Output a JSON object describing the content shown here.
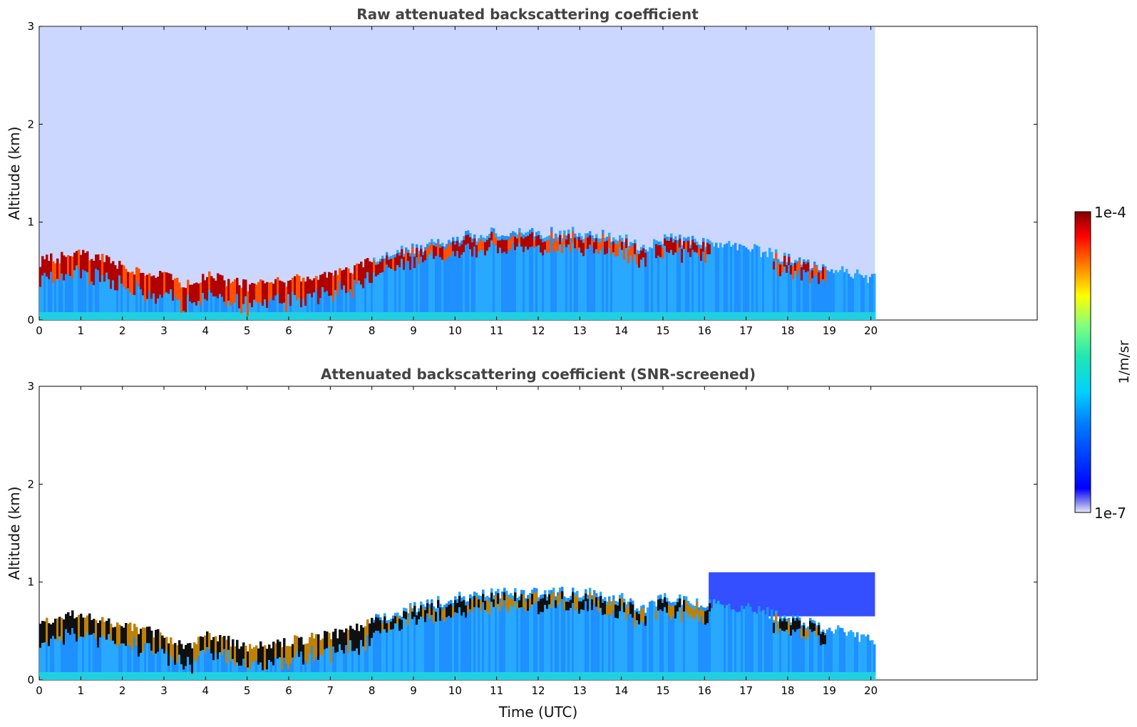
{
  "chart_data": [
    {
      "type": "heatmap",
      "title": "Raw attenuated backscattering coefficient",
      "xlabel": "",
      "ylabel": "Altitude (km)",
      "xlim": [
        0,
        24
      ],
      "ylim": [
        0,
        3
      ],
      "xticks": [
        "0",
        "1",
        "2",
        "3",
        "4",
        "5",
        "6",
        "7",
        "8",
        "9",
        "10",
        "11",
        "12",
        "13",
        "14",
        "15",
        "16",
        "17",
        "18",
        "19",
        "20"
      ],
      "yticks": [
        "0",
        "1",
        "2",
        "3"
      ],
      "data_end_time": 20.1,
      "description_values": {
        "time": [
          0,
          1,
          2,
          3,
          3.5,
          4,
          5,
          6,
          7,
          8,
          9,
          10,
          11,
          12,
          13,
          14,
          14.5,
          15,
          16,
          17,
          18,
          19,
          20
        ],
        "layer_top_km": [
          0.6,
          0.68,
          0.55,
          0.45,
          0.35,
          0.45,
          0.35,
          0.4,
          0.45,
          0.6,
          0.7,
          0.8,
          0.85,
          0.85,
          0.85,
          0.8,
          0.7,
          0.8,
          0.75,
          0.7,
          0.6,
          0.5,
          0.4
        ]
      },
      "colorbar": {
        "label": "1/m/sr",
        "min_label": "1e-7",
        "max_label": "1e-4",
        "scale": "log",
        "colormap": "jet"
      }
    },
    {
      "type": "heatmap",
      "title": "Attenuated backscattering coefficient (SNR-screened)",
      "xlabel": "Time (UTC)",
      "ylabel": "Altitude (km)",
      "xlim": [
        0,
        24
      ],
      "ylim": [
        0,
        3
      ],
      "xticks": [
        "0",
        "1",
        "2",
        "3",
        "4",
        "5",
        "6",
        "7",
        "8",
        "9",
        "10",
        "11",
        "12",
        "13",
        "14",
        "15",
        "16",
        "17",
        "18",
        "19",
        "20"
      ],
      "yticks": [
        "0",
        "1",
        "2",
        "3"
      ],
      "data_end_time": 20.1,
      "description_values": {
        "time": [
          0,
          1,
          2,
          3,
          3.5,
          4,
          5,
          6,
          7,
          8,
          9,
          10,
          11,
          12,
          13,
          14,
          14.5,
          15,
          16,
          17,
          18,
          19,
          20
        ],
        "layer_top_km": [
          0.6,
          0.68,
          0.55,
          0.45,
          0.35,
          0.45,
          0.35,
          0.4,
          0.45,
          0.6,
          0.7,
          0.8,
          0.85,
          0.85,
          0.85,
          0.8,
          0.7,
          0.8,
          0.75,
          0.7,
          0.6,
          0.5,
          0.4
        ]
      },
      "colorbar": {
        "label": "1/m/sr",
        "min_label": "1e-7",
        "max_label": "1e-4",
        "scale": "log",
        "colormap": "jet"
      }
    }
  ]
}
